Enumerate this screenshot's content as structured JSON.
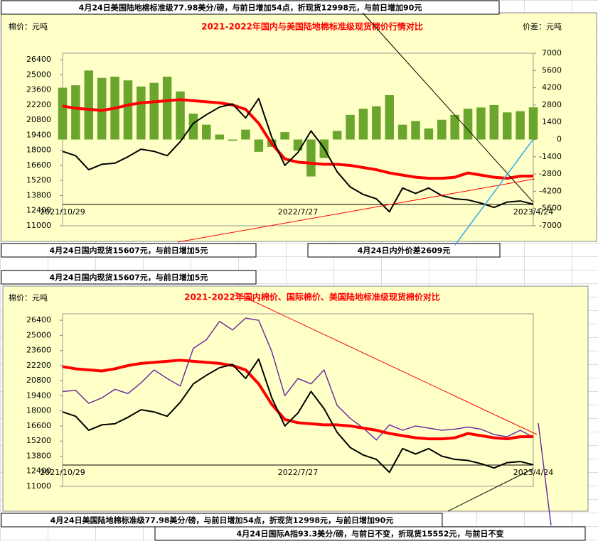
{
  "chart_data": [
    {
      "type": "line",
      "title": "2021-2022年国内与美国陆地棉标准级现货棉价行情对比",
      "y_label": "棉价：元吨",
      "y2_label": "价差：元吨",
      "annotations": [
        "4月24日美国陆地棉标准级77.98美分/磅，与前日增加54点，折现货12998元，与前日增加90元",
        "4月24日国内现货15607元，与前日增加5元",
        "4月24日内外价差2609元"
      ],
      "categories": [
        "2021/10/29",
        null,
        null,
        null,
        null,
        null,
        null,
        null,
        null,
        null,
        null,
        null,
        null,
        null,
        null,
        null,
        null,
        null,
        "2022/7/27",
        null,
        null,
        null,
        null,
        null,
        null,
        null,
        null,
        null,
        null,
        null,
        null,
        null,
        null,
        null,
        null,
        null,
        "2023/4/24"
      ],
      "ylim": [
        11000,
        27000
      ],
      "yticks": [
        11000,
        12400,
        13800,
        15200,
        16600,
        18000,
        19400,
        20800,
        22200,
        23600,
        25000,
        26400
      ],
      "y2lim": [
        -7000,
        7000
      ],
      "y2ticks": [
        -7000,
        -5600,
        -4200,
        -2800,
        -1400,
        0,
        1400,
        2800,
        4200,
        5600,
        7000
      ],
      "series": [
        {
          "type": "bar",
          "axis": "y2",
          "color": "#6aa62e",
          "values": [
            4200,
            4400,
            5600,
            5000,
            5100,
            4800,
            4300,
            4600,
            5100,
            3900,
            2100,
            1200,
            400,
            -100,
            800,
            -1000,
            -600,
            600,
            -900,
            -3000,
            -1500,
            700,
            2000,
            2500,
            2700,
            3600,
            1200,
            1500,
            900,
            1600,
            2000,
            2500,
            2600,
            2800,
            2200,
            2300,
            2609
          ]
        },
        {
          "color": "#ff0000",
          "width": 4,
          "values": [
            22100,
            21900,
            21800,
            21700,
            21900,
            22200,
            22400,
            22500,
            22600,
            22700,
            22600,
            22500,
            22400,
            22200,
            21800,
            20500,
            18600,
            17200,
            16900,
            16800,
            16700,
            16700,
            16600,
            16400,
            16200,
            15900,
            15700,
            15500,
            15400,
            15400,
            15500,
            15900,
            15700,
            15500,
            15400,
            15600,
            15607
          ]
        },
        {
          "color": "#000000",
          "width": 2,
          "values": [
            17900,
            17500,
            16200,
            16700,
            16800,
            17400,
            18100,
            17900,
            17500,
            18800,
            20500,
            21300,
            22000,
            22300,
            21000,
            22800,
            19200,
            16600,
            17800,
            19800,
            18200,
            16000,
            14600,
            13900,
            13500,
            12300,
            14500,
            14000,
            14500,
            13800,
            13500,
            13400,
            13100,
            12700,
            13200,
            13300,
            12998
          ]
        }
      ]
    },
    {
      "type": "line",
      "title": "2021-2022年国内棉价、国际棉价、美国陆地标准级现货棉价对比",
      "y_label": "棉价：元吨",
      "annotations": [
        "4月24日国内现货15607元，与前日增加5元",
        "4月24日美国陆地棉标准级77.98美分/磅，与前日增加54点，折现货12998元，与前日增加90元",
        "4月24日国际A指93.3美分/磅，与前日不变，折现货15552元，与前日不变"
      ],
      "categories": [
        "2021/10/29",
        null,
        null,
        null,
        null,
        null,
        null,
        null,
        null,
        null,
        null,
        null,
        null,
        null,
        null,
        null,
        null,
        null,
        "2022/7/27",
        null,
        null,
        null,
        null,
        null,
        null,
        null,
        null,
        null,
        null,
        null,
        null,
        null,
        null,
        null,
        null,
        null,
        "2023/4/24"
      ],
      "ylim": [
        11000,
        27000
      ],
      "yticks": [
        11000,
        12400,
        13800,
        15200,
        16600,
        18000,
        19400,
        20800,
        22200,
        23600,
        25000,
        26400
      ],
      "series": [
        {
          "color": "#7030a0",
          "width": 1.5,
          "values": [
            19800,
            19900,
            18700,
            19200,
            20000,
            19600,
            20600,
            21800,
            21000,
            20300,
            23800,
            24600,
            26300,
            25500,
            26600,
            26400,
            23500,
            19400,
            21000,
            20500,
            21800,
            18500,
            17300,
            16400,
            15300,
            16700,
            16200,
            16600,
            16400,
            16200,
            16300,
            16500,
            16300,
            15800,
            15600,
            16200,
            15552
          ]
        },
        {
          "color": "#ff0000",
          "width": 4,
          "values": [
            22100,
            21900,
            21800,
            21700,
            21900,
            22200,
            22400,
            22500,
            22600,
            22700,
            22600,
            22500,
            22400,
            22200,
            21800,
            20500,
            18600,
            17200,
            16900,
            16800,
            16700,
            16700,
            16600,
            16400,
            16200,
            15900,
            15700,
            15500,
            15400,
            15400,
            15500,
            15900,
            15700,
            15500,
            15400,
            15600,
            15607
          ]
        },
        {
          "color": "#000000",
          "width": 2,
          "values": [
            17900,
            17500,
            16200,
            16700,
            16800,
            17400,
            18100,
            17900,
            17500,
            18800,
            20500,
            21300,
            22000,
            22300,
            21000,
            22800,
            19200,
            16600,
            17800,
            19800,
            18200,
            16000,
            14600,
            13900,
            13500,
            12300,
            14500,
            14000,
            14500,
            13800,
            13500,
            13400,
            13100,
            12700,
            13200,
            13300,
            12998
          ]
        }
      ]
    }
  ]
}
